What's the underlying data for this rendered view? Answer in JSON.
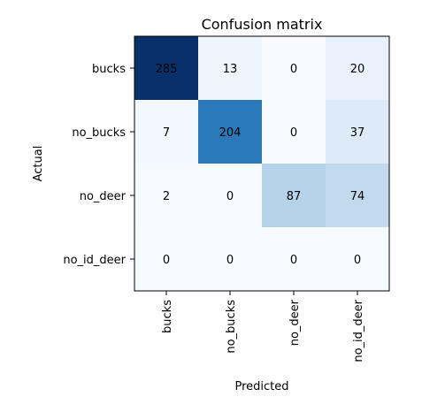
{
  "chart_data": {
    "type": "heatmap",
    "title": "Confusion matrix",
    "xlabel": "Predicted",
    "ylabel": "Actual",
    "x_categories": [
      "bucks",
      "no_bucks",
      "no_deer",
      "no_id_deer"
    ],
    "y_categories": [
      "bucks",
      "no_bucks",
      "no_deer",
      "no_id_deer"
    ],
    "values": [
      [
        285,
        13,
        0,
        20
      ],
      [
        7,
        204,
        0,
        37
      ],
      [
        2,
        0,
        87,
        74
      ],
      [
        0,
        0,
        0,
        0
      ]
    ],
    "colormap": "Blues",
    "colors": {
      "low": "#f7fbff",
      "high": "#08306b",
      "text_dark": "#000000",
      "text_light": "#ffffff"
    }
  }
}
